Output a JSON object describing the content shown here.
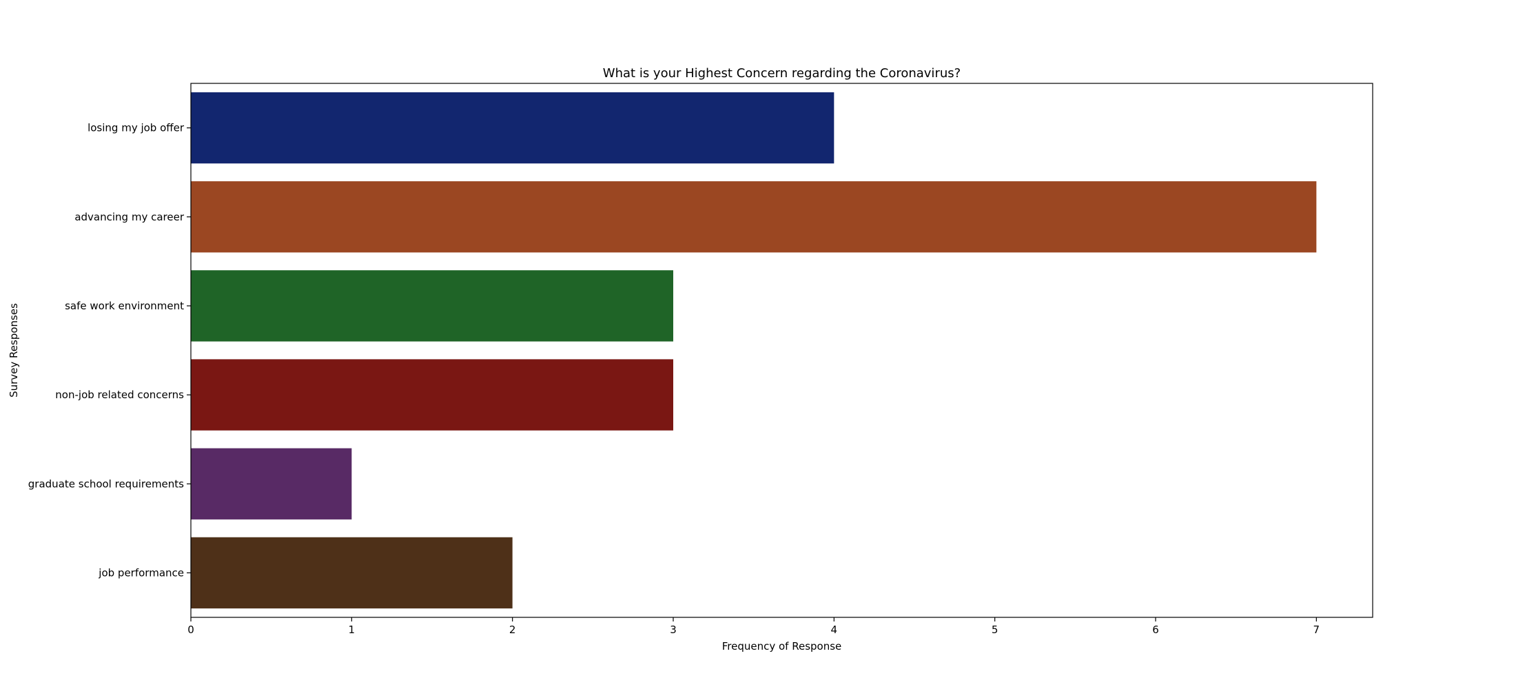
{
  "chart_data": {
    "type": "bar",
    "orientation": "horizontal",
    "title": "What is your Highest Concern regarding the Coronavirus?",
    "xlabel": "Frequency of Response",
    "ylabel": "Survey Responses",
    "categories": [
      "losing my job offer",
      "advancing my career",
      "safe work environment",
      "non-job related concerns",
      "graduate school requirements",
      "job performance"
    ],
    "values": [
      4,
      7,
      3,
      3,
      1,
      2
    ],
    "colors": [
      "#12266f",
      "#9b4722",
      "#1f6427",
      "#7a1713",
      "#582a65",
      "#4e3018"
    ],
    "xlim": [
      0,
      7.35
    ],
    "xticks": [
      0,
      1,
      2,
      3,
      4,
      5,
      6,
      7
    ],
    "grid": false,
    "legend": "none"
  }
}
